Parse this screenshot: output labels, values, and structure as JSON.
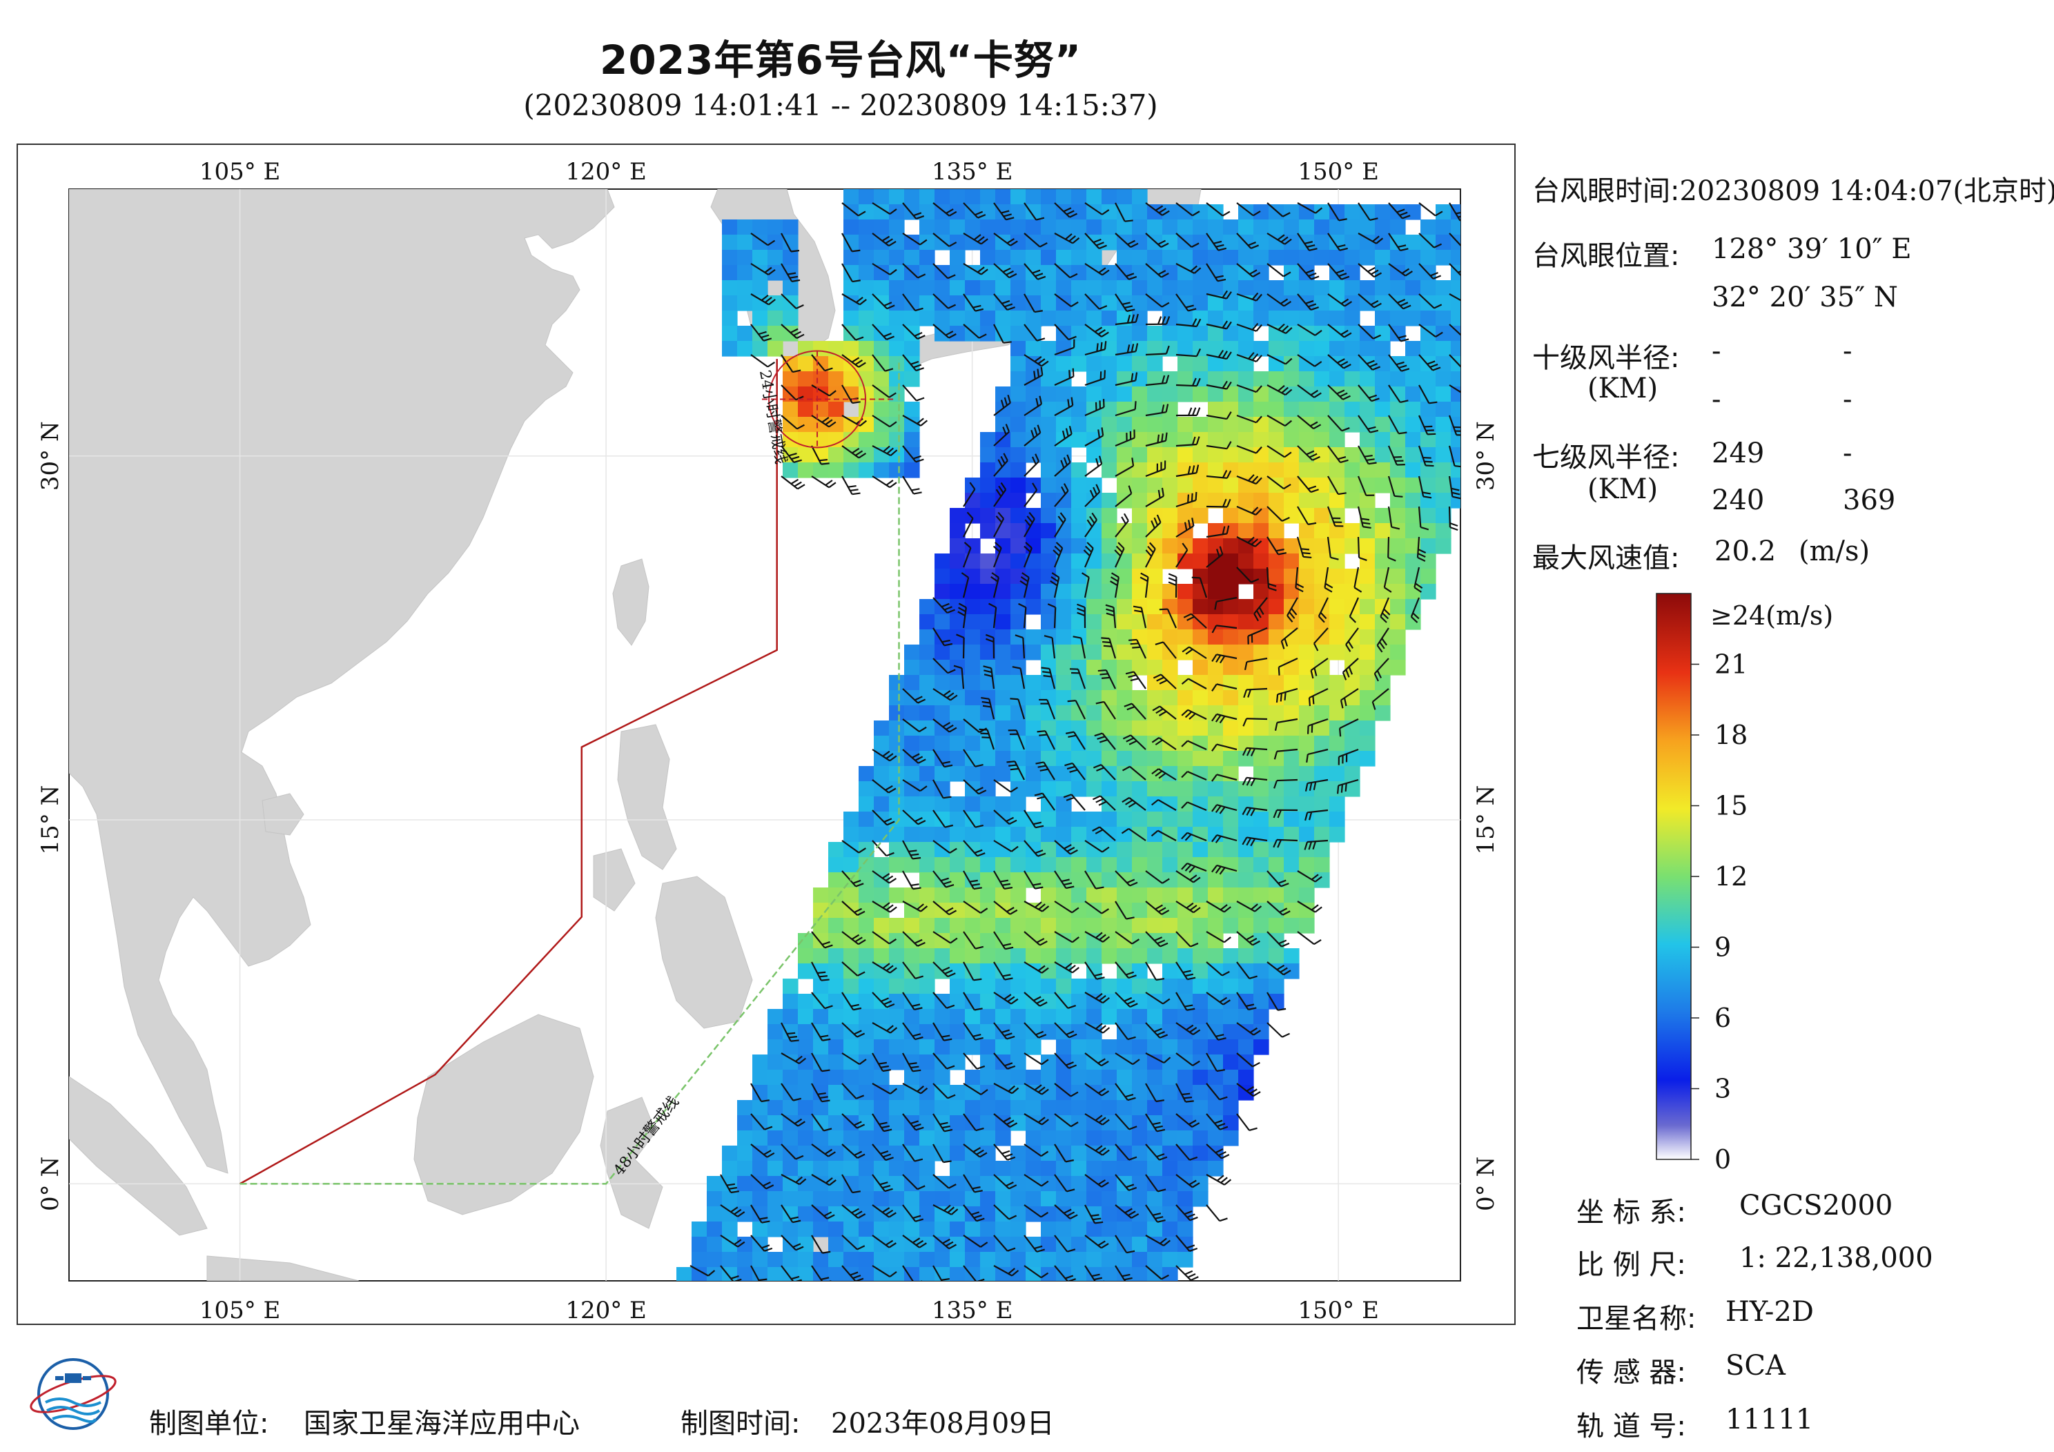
{
  "header": {
    "title": "2023年第6号台风“卡努”",
    "subtitle": "(20230809 14:01:41 -- 20230809 14:15:37)"
  },
  "map": {
    "lon_labels": [
      "105° E",
      "120° E",
      "135° E",
      "150° E"
    ],
    "lat_labels": [
      "30° N",
      "15° N",
      "0° N"
    ],
    "lon_values": [
      105,
      120,
      135,
      150
    ],
    "lat_values": [
      30,
      15,
      0
    ],
    "extent": {
      "lon_min": 98,
      "lon_max": 155,
      "lat_min": -4,
      "lat_max": 41
    },
    "warning_24h_label": "24小时警戒线",
    "warning_48h_label": "48小时警戒线",
    "warning_24h_line": [
      [
        105,
        0
      ],
      [
        113,
        4.5
      ],
      [
        119,
        11
      ],
      [
        119,
        18
      ],
      [
        127,
        22
      ],
      [
        127,
        34
      ]
    ],
    "warning_48h_line": [
      [
        105,
        0
      ],
      [
        120,
        0
      ],
      [
        132,
        15
      ],
      [
        132,
        34
      ]
    ],
    "typhoon_eye": {
      "lon": 128.65,
      "lat": 32.34
    },
    "colors": {
      "land": "#d3d3d3",
      "ocean": "#ffffff",
      "warning_24h": "#b01818",
      "warning_48h": "#7ac46a",
      "barb": "#111111"
    }
  },
  "info": {
    "eye_time_label": "台风眼时间:",
    "eye_time_value": "20230809 14:04:07(北京时)",
    "eye_pos_label": "台风眼位置:",
    "eye_lon": "128° 39′ 10″ E",
    "eye_lat": "32° 20′ 35″ N",
    "r10_label": "十级风半径:",
    "r10_unit": "(KM)",
    "r10_values": [
      "-",
      "-",
      "-",
      "-"
    ],
    "r7_label": "七级风半径:",
    "r7_unit": "(KM)",
    "r7_values": [
      "249",
      "-",
      "240",
      "369"
    ],
    "max_wind_label": "最大风速值:",
    "max_wind_value": "20.2",
    "max_wind_unit": "(m/s)"
  },
  "colorbar": {
    "top_label": "≥24(m/s)",
    "ticks": [
      "21",
      "18",
      "15",
      "12",
      "9",
      "6",
      "3",
      "0"
    ],
    "tick_values": [
      21,
      18,
      15,
      12,
      9,
      6,
      3,
      0
    ],
    "max": 24,
    "stops": [
      "#ffffff",
      "#6a6ad0",
      "#0a1ee8",
      "#1e7ae8",
      "#22c4e8",
      "#7ae070",
      "#f2ea28",
      "#f7a21e",
      "#e83214",
      "#8c0a0a"
    ]
  },
  "meta": {
    "coord_label": "坐 标 系:",
    "coord_value": "CGCS2000",
    "scale_label": "比 例 尺:",
    "scale_value": "1: 22,138,000",
    "sat_label": "卫星名称:",
    "sat_value": "HY-2D",
    "sensor_label": "传 感 器:",
    "sensor_value": "SCA",
    "orbit_label": "轨 道 号:",
    "orbit_value": "11111"
  },
  "footer": {
    "producer_label": "制图单位:",
    "producer_value": "国家卫星海洋应用中心",
    "date_label": "制图时间:",
    "date_value": "2023年08月09日"
  }
}
